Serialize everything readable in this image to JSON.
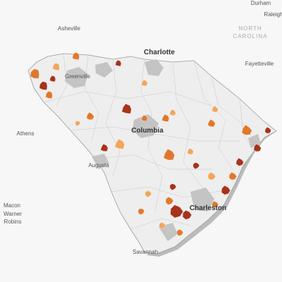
{
  "labels": [
    {
      "text": "Durham"
    },
    {
      "text": "Raleigh"
    },
    {
      "text": "Asheville"
    },
    {
      "text": "NORTH"
    },
    {
      "text": "CAROLINA"
    },
    {
      "text": "Charlotte"
    },
    {
      "text": "Fayetteville"
    },
    {
      "text": "Greenville"
    },
    {
      "text": "Columbia"
    },
    {
      "text": "Athens"
    },
    {
      "text": "Augusta"
    },
    {
      "text": "Macon"
    },
    {
      "text": "Warner"
    },
    {
      "text": "Robins"
    },
    {
      "text": "Charleston"
    },
    {
      "text": "Savannah"
    }
  ]
}
